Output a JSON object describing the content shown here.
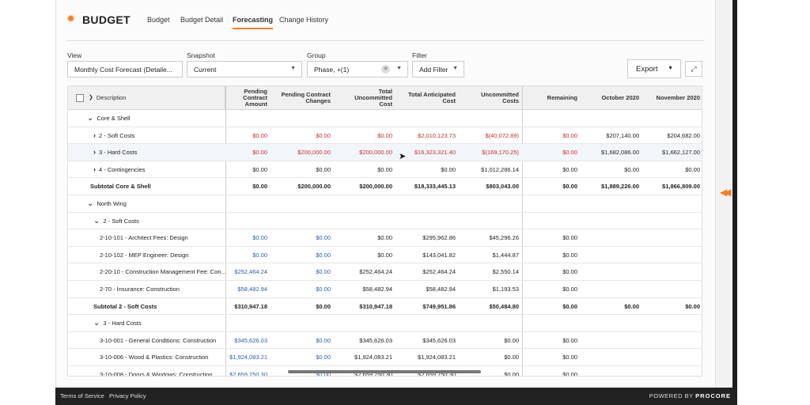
{
  "header": {
    "title": "BUDGET",
    "tabs": [
      {
        "label": "Budget",
        "active": false
      },
      {
        "label": "Budget Detail",
        "active": false
      },
      {
        "label": "Forecasting",
        "active": true
      },
      {
        "label": "Change History",
        "active": false
      }
    ]
  },
  "filters": {
    "view_label": "View",
    "view_value": "Monthly Cost Forecast (Detaile...",
    "snapshot_label": "Snapshot",
    "snapshot_value": "Current",
    "group_label": "Group",
    "group_value": "Phase, +(1)",
    "filter_label": "Filter",
    "filter_value": "Add Filter",
    "export_label": "Export"
  },
  "table": {
    "columns": [
      "Description",
      "Pending Contract\nAmount",
      "Pending Contract\nChanges",
      "Total\nUncommitted\nCost",
      "Total Anticipated\nCost",
      "Uncommitted\nCosts",
      "Remaining",
      "October 2020",
      "November 2020"
    ],
    "rows": [
      {
        "type": "group",
        "level": 1,
        "label": "Core & Shell",
        "values": []
      },
      {
        "type": "row",
        "level": 2,
        "label": "2 - Soft Costs",
        "values": [
          "$0.00",
          "$0.00",
          "$0.00",
          "$2,010,123.73",
          "$(40,072.89)",
          "$0.00",
          "$207,140.00",
          "$204,682.00"
        ],
        "red": [
          0,
          1,
          2,
          3,
          4,
          5
        ]
      },
      {
        "type": "row",
        "level": 2,
        "label": "3 - Hard Costs",
        "highlight": true,
        "values": [
          "$0.00",
          "$200,000.00",
          "$200,000.00",
          "$16,323,321.40",
          "$(169,170.25)",
          "$0.00",
          "$1,682,086.00",
          "$1,662,127.00"
        ],
        "red": [
          0,
          1,
          2,
          3,
          4,
          5
        ]
      },
      {
        "type": "row",
        "level": 2,
        "label": "4 - Contingencies",
        "values": [
          "$0.00",
          "$0.00",
          "$0.00",
          "$0.00",
          "$1,012,286.14",
          "$0.00",
          "$0.00",
          "$0.00"
        ]
      },
      {
        "type": "subtotal",
        "level": 0,
        "label": "Subtotal Core & Shell",
        "values": [
          "$0.00",
          "$200,000.00",
          "$200,000.00",
          "$18,333,445.13",
          "$803,043.00",
          "$0.00",
          "$1,889,226.00",
          "$1,866,809.00"
        ]
      },
      {
        "type": "group",
        "level": 1,
        "label": "North Wing",
        "values": []
      },
      {
        "type": "group",
        "level": 2,
        "label": "2 - Soft Costs",
        "values": []
      },
      {
        "type": "row",
        "level": 3,
        "label": "2-10-101 - Architect Fees: Design",
        "values": [
          "$0.00",
          "$0.00",
          "$0.00",
          "$295,962.86",
          "$45,296.26",
          "$0.00",
          "",
          ""
        ],
        "blue": [
          0,
          1
        ]
      },
      {
        "type": "row",
        "level": 3,
        "label": "2-10-102 - MEP Engineer: Design",
        "values": [
          "$0.00",
          "$0.00",
          "$0.00",
          "$143,041.82",
          "$1,444.87",
          "$0.00",
          "",
          ""
        ],
        "blue": [
          0,
          1
        ]
      },
      {
        "type": "row",
        "level": 3,
        "label": "2-20-10 - Construction Management Fee: Con...",
        "values": [
          "$252,464.24",
          "$0.00",
          "$252,464.24",
          "$252,464.24",
          "$2,550.14",
          "$0.00",
          "",
          ""
        ],
        "blue": [
          0,
          1
        ]
      },
      {
        "type": "row",
        "level": 3,
        "label": "2-70 - Insurance: Construction",
        "values": [
          "$58,482.94",
          "$0.00",
          "$58,482.94",
          "$58,482.94",
          "$1,193.53",
          "$0.00",
          "",
          ""
        ],
        "blue": [
          0,
          1
        ]
      },
      {
        "type": "subtotal",
        "level": 1,
        "label": "Subtotal 2 - Soft Costs",
        "values": [
          "$310,947.18",
          "$0.00",
          "$310,947.18",
          "$749,951.86",
          "$50,484.80",
          "$0.00",
          "$0.00",
          "$0.00"
        ]
      },
      {
        "type": "group",
        "level": 2,
        "label": "3 - Hard Costs",
        "values": []
      },
      {
        "type": "row",
        "level": 3,
        "label": "3-10-001 - General Conditions: Construction",
        "values": [
          "$345,626.03",
          "$0.00",
          "$345,626.03",
          "$345,626.03",
          "$0.00",
          "$0.00",
          "",
          ""
        ],
        "blue": [
          0,
          1
        ]
      },
      {
        "type": "row",
        "level": 3,
        "label": "3-10-006 - Wood & Plastics: Construction",
        "values": [
          "$1,924,083.21",
          "$0.00",
          "$1,924,083.21",
          "$1,924,083.21",
          "$0.00",
          "$0.00",
          "",
          ""
        ],
        "blue": [
          0,
          1
        ]
      },
      {
        "type": "row",
        "level": 3,
        "label": "3-10-008 - Doors & Windows: Construction",
        "values": [
          "$2,659,750.30",
          "$0.00",
          "$2,659,750.30",
          "$2,659,750.30",
          "$0.00",
          "$0.00",
          "",
          ""
        ],
        "blue": [
          0,
          1
        ]
      }
    ]
  },
  "footer": {
    "terms": "Terms of Service",
    "privacy": "Privacy Policy",
    "powered_prefix": "POWERED BY",
    "powered_brand": "PROCORE"
  },
  "colors": {
    "accent": "#f47e29",
    "negative": "#c9302c",
    "link": "#2a5db0"
  },
  "icons": [
    "gear-icon",
    "chevron-down-icon",
    "chevron-right-icon",
    "clear-icon",
    "expand-icon",
    "collapse-arrows-icon"
  ]
}
